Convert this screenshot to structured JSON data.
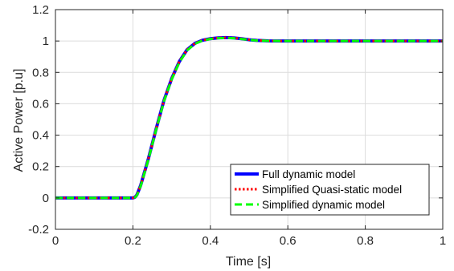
{
  "chart_data": {
    "type": "line",
    "title": "",
    "xlabel": "Time [s]",
    "ylabel": "Active Power [p.u]",
    "xlim": [
      0,
      1
    ],
    "ylim": [
      -0.2,
      1.2
    ],
    "xticks": [
      0,
      0.2,
      0.4,
      0.6,
      0.8,
      1
    ],
    "yticks": [
      -0.2,
      0,
      0.2,
      0.4,
      0.6,
      0.8,
      1,
      1.2
    ],
    "xtick_labels": [
      "0",
      "0.2",
      "0.4",
      "0.6",
      "0.8",
      "1"
    ],
    "ytick_labels": [
      "-0.2",
      "0",
      "0.2",
      "0.4",
      "0.6",
      "0.8",
      "1",
      "1.2"
    ],
    "grid": true,
    "legend_position": "bottom-right",
    "series": [
      {
        "name": "Full dynamic model",
        "color": "#0000ff",
        "style": "solid",
        "x": [
          0,
          0.1,
          0.2,
          0.205,
          0.21,
          0.22,
          0.24,
          0.26,
          0.28,
          0.3,
          0.32,
          0.34,
          0.36,
          0.38,
          0.4,
          0.42,
          0.44,
          0.46,
          0.48,
          0.5,
          0.52,
          0.55,
          0.6,
          0.7,
          0.8,
          0.9,
          1.0
        ],
        "y": [
          0,
          0,
          0,
          0.004,
          0.018,
          0.08,
          0.25,
          0.44,
          0.62,
          0.76,
          0.87,
          0.945,
          0.985,
          1.005,
          1.015,
          1.02,
          1.022,
          1.02,
          1.015,
          1.008,
          1.004,
          1.001,
          1.0,
          1.0,
          1.0,
          1.0,
          1.0
        ]
      },
      {
        "name": "Simplified Quasi-static model",
        "color": "#ff0000",
        "style": "dotted",
        "x": [
          0,
          0.1,
          0.2,
          0.205,
          0.21,
          0.22,
          0.24,
          0.26,
          0.28,
          0.3,
          0.32,
          0.34,
          0.36,
          0.38,
          0.4,
          0.42,
          0.44,
          0.46,
          0.48,
          0.5,
          0.52,
          0.55,
          0.6,
          0.7,
          0.8,
          0.9,
          1.0
        ],
        "y": [
          0,
          0,
          0,
          0.004,
          0.018,
          0.08,
          0.25,
          0.44,
          0.62,
          0.76,
          0.87,
          0.945,
          0.985,
          1.005,
          1.015,
          1.02,
          1.022,
          1.02,
          1.015,
          1.008,
          1.004,
          1.001,
          1.0,
          1.0,
          1.0,
          1.0,
          1.0
        ]
      },
      {
        "name": "Simplified dynamic model",
        "color": "#00ff00",
        "style": "dashed",
        "x": [
          0,
          0.1,
          0.2,
          0.205,
          0.21,
          0.22,
          0.24,
          0.26,
          0.28,
          0.3,
          0.32,
          0.34,
          0.36,
          0.38,
          0.4,
          0.42,
          0.44,
          0.46,
          0.48,
          0.5,
          0.52,
          0.55,
          0.6,
          0.7,
          0.8,
          0.9,
          1.0
        ],
        "y": [
          0,
          0,
          0,
          0.003,
          0.015,
          0.075,
          0.245,
          0.435,
          0.615,
          0.755,
          0.865,
          0.94,
          0.982,
          1.003,
          1.013,
          1.018,
          1.02,
          1.018,
          1.013,
          1.007,
          1.003,
          1.001,
          1.0,
          1.0,
          1.0,
          1.0,
          1.0
        ]
      }
    ]
  }
}
